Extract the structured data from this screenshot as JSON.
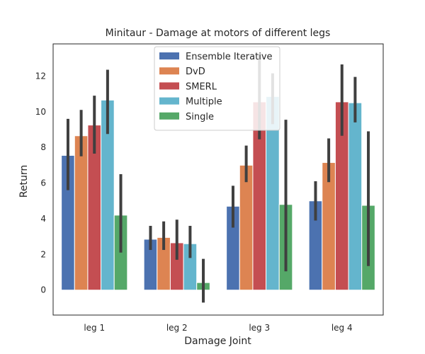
{
  "chart_data": {
    "type": "bar",
    "title": "Minitaur - Damage at motors of different legs",
    "xlabel": "Damage Joint",
    "ylabel": "Return",
    "categories": [
      "leg 1",
      "leg 2",
      "leg 3",
      "leg 4"
    ],
    "ylim": [
      -1.4,
      13.8
    ],
    "yticks": [
      0,
      2,
      4,
      6,
      8,
      10,
      12
    ],
    "grid": false,
    "legend_position": "top-center",
    "series": [
      {
        "name": "Ensemble Iterative",
        "color": "#4c72b0",
        "values": [
          7.55,
          2.85,
          4.7,
          5.0
        ],
        "err_low": [
          5.6,
          2.25,
          3.5,
          3.9
        ],
        "err_high": [
          9.6,
          3.6,
          5.85,
          6.1
        ]
      },
      {
        "name": "DvD",
        "color": "#dd8452",
        "values": [
          8.65,
          2.95,
          7.0,
          7.15
        ],
        "err_low": [
          7.5,
          2.25,
          6.05,
          6.05
        ],
        "err_high": [
          10.1,
          3.85,
          8.1,
          8.5
        ]
      },
      {
        "name": "SMERL",
        "color": "#c44e52",
        "values": [
          9.25,
          2.65,
          10.55,
          10.55
        ],
        "err_low": [
          7.65,
          1.7,
          8.45,
          8.65
        ],
        "err_high": [
          10.9,
          3.95,
          13.2,
          12.65
        ]
      },
      {
        "name": "Multiple",
        "color": "#64b5cd",
        "values": [
          10.65,
          2.6,
          10.85,
          10.5
        ],
        "err_low": [
          8.75,
          1.8,
          9.3,
          9.4
        ],
        "err_high": [
          12.35,
          3.6,
          12.15,
          11.95
        ]
      },
      {
        "name": "Single",
        "color": "#55a868",
        "values": [
          4.2,
          0.42,
          4.8,
          4.75
        ],
        "err_low": [
          2.1,
          -0.7,
          1.05,
          1.35
        ],
        "err_high": [
          6.5,
          1.75,
          9.55,
          8.9
        ]
      }
    ]
  }
}
